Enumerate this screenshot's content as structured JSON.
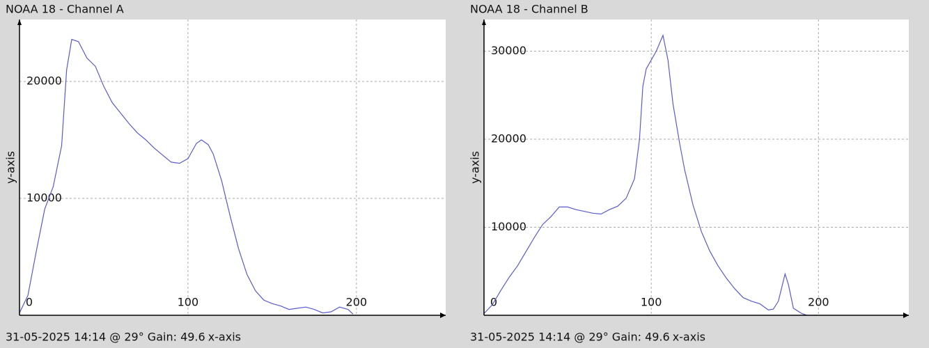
{
  "chart_data": [
    {
      "type": "line",
      "title": "NOAA 18 - Channel A",
      "y_label": "y-axis",
      "x_label": "x-axis",
      "caption": "31-05-2025 14:14 @ 29° Gain: 49.6",
      "color": "#5a5ad2",
      "grid": true,
      "xlim": [
        0,
        253
      ],
      "ylim": [
        0,
        25300
      ],
      "xticks": [
        0,
        100,
        200
      ],
      "yticks": [
        10000,
        20000
      ],
      "x": [
        0,
        5,
        10,
        15,
        20,
        25,
        28,
        31,
        35,
        40,
        45,
        50,
        55,
        60,
        65,
        70,
        75,
        80,
        85,
        90,
        95,
        100,
        105,
        108,
        112,
        115,
        120,
        125,
        130,
        135,
        140,
        145,
        150,
        155,
        160,
        165,
        170,
        175,
        180,
        185,
        190,
        195,
        198
      ],
      "values": [
        200,
        1700,
        5500,
        9100,
        11000,
        14500,
        21000,
        23600,
        23400,
        22000,
        21300,
        19600,
        18200,
        17300,
        16400,
        15600,
        15000,
        14300,
        13700,
        13100,
        13000,
        13400,
        14700,
        15000,
        14600,
        13800,
        11500,
        8500,
        5700,
        3500,
        2100,
        1300,
        1000,
        800,
        500,
        600,
        700,
        500,
        200,
        300,
        700,
        500,
        100
      ]
    },
    {
      "type": "line",
      "title": "NOAA 18 - Channel B",
      "y_label": "y-axis",
      "x_label": "x-axis",
      "caption": "31-05-2025 14:14 @ 29° Gain: 49.6",
      "color": "#5a5ad2",
      "grid": true,
      "xlim": [
        0,
        254
      ],
      "ylim": [
        0,
        33600
      ],
      "xticks": [
        0,
        100,
        200
      ],
      "yticks": [
        10000,
        20000,
        30000
      ],
      "x": [
        0,
        5,
        10,
        15,
        20,
        25,
        30,
        35,
        40,
        45,
        50,
        55,
        60,
        65,
        70,
        75,
        80,
        85,
        90,
        93,
        95,
        97,
        100,
        103,
        107,
        110,
        113,
        117,
        120,
        125,
        130,
        135,
        140,
        145,
        150,
        155,
        160,
        165,
        170,
        173,
        176,
        180,
        182,
        185,
        190,
        193
      ],
      "values": [
        200,
        1200,
        2800,
        4300,
        5600,
        7200,
        8800,
        10300,
        11200,
        12300,
        12300,
        12000,
        11800,
        11600,
        11500,
        12000,
        12400,
        13300,
        15500,
        20000,
        26000,
        28000,
        29000,
        30000,
        31800,
        29000,
        24000,
        19500,
        16500,
        12500,
        9500,
        7300,
        5600,
        4200,
        3000,
        2000,
        1600,
        1300,
        600,
        700,
        1600,
        4700,
        3500,
        800,
        200,
        0
      ]
    }
  ]
}
